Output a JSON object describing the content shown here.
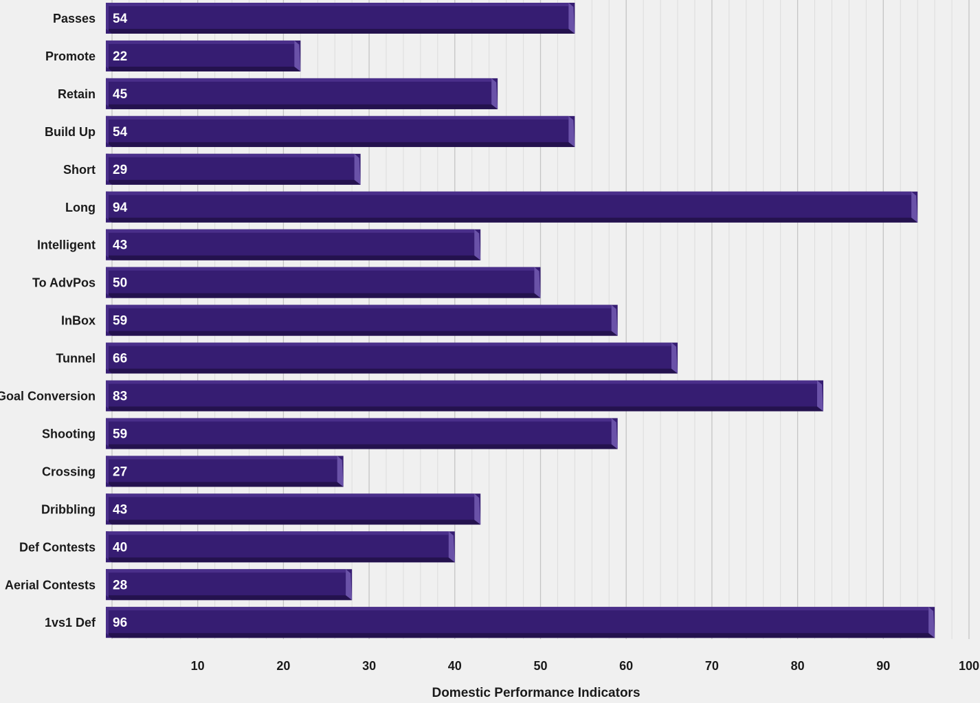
{
  "chart_data": {
    "type": "bar",
    "orientation": "horizontal",
    "title": "",
    "xlabel": "Domestic Performance Indicators",
    "ylabel": "",
    "xlim": [
      0,
      100
    ],
    "x_ticks": [
      "10",
      "20",
      "30",
      "40",
      "50",
      "60",
      "70",
      "80",
      "90",
      "100"
    ],
    "grid": true,
    "categories": [
      "Passes",
      "Promote",
      "Retain",
      "Build Up",
      "Short",
      "Long",
      "Intelligent",
      "To AdvPos",
      "InBox",
      "Tunnel",
      "Goal Conversion",
      "Shooting",
      "Crossing",
      "Dribbling",
      "Def Contests",
      "Aerial Contests",
      "1vs1 Def"
    ],
    "values": [
      54,
      22,
      45,
      54,
      29,
      94,
      43,
      50,
      59,
      66,
      83,
      59,
      27,
      43,
      40,
      28,
      96
    ],
    "data_labels": [
      "54",
      "22",
      "45",
      "54",
      "29",
      "94",
      "43",
      "50",
      "59",
      "66",
      "83",
      "59",
      "27",
      "43",
      "40",
      "28",
      "96"
    ],
    "colors": {
      "bar_front": "#361d72",
      "bar_top": "#4a2f8a",
      "bar_bottom": "#24124e",
      "bar_side": "#6a52a8",
      "background": "#f0f0f0",
      "grid_major": "#c4c4c4",
      "grid_minor": "#dcdcdc",
      "value_label": "#ffffff",
      "text": "#1a1a1a"
    }
  }
}
